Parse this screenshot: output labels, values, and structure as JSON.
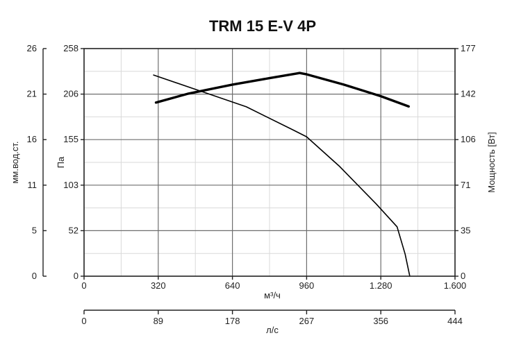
{
  "chart_data": {
    "type": "line",
    "title": "TRM 15 E-V 4P",
    "xlabel": "м³/ч",
    "ylabel_left": "Па",
    "ylabel_left_outer": "мм.вод.ст.",
    "ylabel_right": "Мощность [Вт]",
    "xlabel_secondary": "л/с",
    "x_ticks": [
      "0",
      "320",
      "640",
      "960",
      "1.280",
      "1.600"
    ],
    "x_secondary_ticks": [
      "0",
      "89",
      "178",
      "267",
      "356",
      "444"
    ],
    "y_left_ticks": [
      "0",
      "52",
      "103",
      "155",
      "206",
      "258"
    ],
    "y_left_outer_ticks": [
      "0",
      "5",
      "11",
      "16",
      "21",
      "26"
    ],
    "y_right_ticks": [
      "0",
      "35",
      "71",
      "106",
      "142",
      "177"
    ],
    "xlim": [
      0,
      1600
    ],
    "ylim_left": [
      0,
      258
    ],
    "ylim_right": [
      0,
      177
    ],
    "grid": true,
    "series": [
      {
        "axis": "left",
        "stroke": "#000000",
        "x": [
          300,
          500,
          700,
          900,
          960,
          1100,
          1260,
          1350,
          1385,
          1405
        ],
        "y": [
          228,
          210,
          192,
          166,
          158,
          125,
          82,
          56,
          25,
          0
        ]
      },
      {
        "axis": "right",
        "stroke": "#000000",
        "x": [
          310,
          450,
          640,
          800,
          930,
          960,
          1120,
          1280,
          1400
        ],
        "y": [
          135,
          142,
          149,
          154,
          158,
          157,
          149,
          140,
          132
        ]
      }
    ]
  }
}
